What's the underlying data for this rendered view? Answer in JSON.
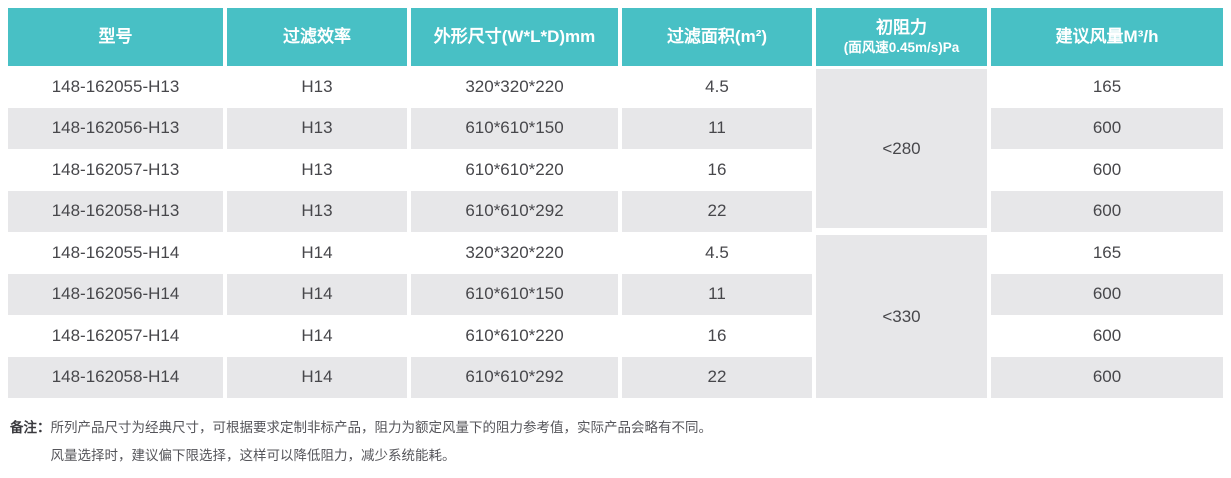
{
  "colors": {
    "header_bg": "#48c0c5",
    "header_text": "#ffffff",
    "row_alt_bg": "#e7e7e9",
    "body_text": "#47474b",
    "note_text": "#55555a"
  },
  "table": {
    "headers": {
      "model": "型号",
      "efficiency": "过滤效率",
      "dimensions": "外形尺寸(W*L*D)mm",
      "area": "过滤面积(m²)",
      "resistance_main": "初阻力",
      "resistance_sub": "(面风速0.45m/s)Pa",
      "airflow": "建议风量M³/h"
    },
    "groups": [
      {
        "resistance": "<280",
        "rows": [
          {
            "model": "148-162055-H13",
            "efficiency": "H13",
            "dimensions": "320*320*220",
            "area": "4.5",
            "airflow": "165"
          },
          {
            "model": "148-162056-H13",
            "efficiency": "H13",
            "dimensions": "610*610*150",
            "area": "11",
            "airflow": "600"
          },
          {
            "model": "148-162057-H13",
            "efficiency": "H13",
            "dimensions": "610*610*220",
            "area": "16",
            "airflow": "600"
          },
          {
            "model": "148-162058-H13",
            "efficiency": "H13",
            "dimensions": "610*610*292",
            "area": "22",
            "airflow": "600"
          }
        ]
      },
      {
        "resistance": "<330",
        "rows": [
          {
            "model": "148-162055-H14",
            "efficiency": "H14",
            "dimensions": "320*320*220",
            "area": "4.5",
            "airflow": "165"
          },
          {
            "model": "148-162056-H14",
            "efficiency": "H14",
            "dimensions": "610*610*150",
            "area": "11",
            "airflow": "600"
          },
          {
            "model": "148-162057-H14",
            "efficiency": "H14",
            "dimensions": "610*610*220",
            "area": "16",
            "airflow": "600"
          },
          {
            "model": "148-162058-H14",
            "efficiency": "H14",
            "dimensions": "610*610*292",
            "area": "22",
            "airflow": "600"
          }
        ]
      }
    ]
  },
  "note": {
    "label": "备注：",
    "lines": [
      "所列产品尺寸为经典尺寸，可根据要求定制非标产品，阻力为额定风量下的阻力参考值，实际产品会略有不同。",
      "风量选择时，建议偏下限选择，这样可以降低阻力，减少系统能耗。"
    ]
  }
}
